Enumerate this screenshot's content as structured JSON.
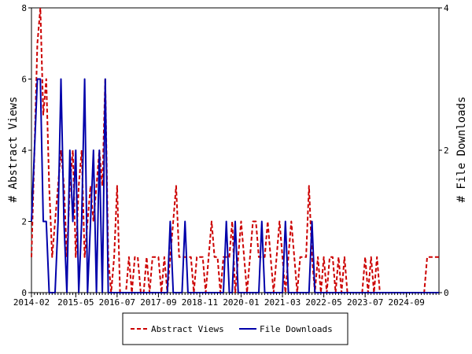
{
  "chart_data": {
    "type": "line",
    "ylabel_left": "# Abstract Views",
    "ylabel_right": "# File Downloads",
    "ylim_left": [
      0,
      8
    ],
    "ylim_right": [
      0,
      4
    ],
    "yticks_left": [
      "0",
      "2",
      "4",
      "6",
      "8"
    ],
    "yticks_right": [
      "0",
      "2",
      "4"
    ],
    "xlim": [
      "2014-02",
      "2025-08"
    ],
    "xtick_labels": [
      "2014-02",
      "2015-05",
      "2016-07",
      "2017-09",
      "2018-11",
      "2020-01",
      "2021-03",
      "2022-05",
      "2023-07",
      "2024-09"
    ],
    "grid": false,
    "legend_position": "bottom",
    "series": [
      {
        "name": "Abstract Views",
        "axis": "left",
        "color": "#cc0000",
        "style": "dashed",
        "x": [
          "2014-02",
          "2014-03",
          "2014-04",
          "2014-05",
          "2014-06",
          "2014-07",
          "2014-08",
          "2014-09",
          "2014-10",
          "2014-11",
          "2014-12",
          "2015-01",
          "2015-02",
          "2015-03",
          "2015-04",
          "2015-05",
          "2015-06",
          "2015-07",
          "2015-08",
          "2015-09",
          "2015-10",
          "2015-11",
          "2015-12",
          "2016-01",
          "2016-02",
          "2016-03",
          "2016-04",
          "2016-05",
          "2016-06",
          "2016-07",
          "2016-08",
          "2016-09",
          "2016-10",
          "2016-11",
          "2016-12",
          "2017-01",
          "2017-02",
          "2017-03",
          "2017-04",
          "2017-05",
          "2017-06",
          "2017-07",
          "2017-08",
          "2017-09",
          "2017-10",
          "2017-11",
          "2017-12",
          "2018-01",
          "2018-02",
          "2018-03",
          "2018-04",
          "2018-05",
          "2018-06",
          "2018-07",
          "2018-08",
          "2018-09",
          "2018-10",
          "2018-11",
          "2018-12",
          "2019-01",
          "2019-02",
          "2019-03",
          "2019-04",
          "2019-05",
          "2019-06",
          "2019-07",
          "2019-08",
          "2019-09",
          "2019-10",
          "2019-11",
          "2019-12",
          "2020-01",
          "2020-02",
          "2020-03",
          "2020-04",
          "2020-05",
          "2020-06",
          "2020-07",
          "2020-08",
          "2020-09",
          "2020-10",
          "2020-11",
          "2020-12",
          "2021-01",
          "2021-02",
          "2021-03",
          "2021-04",
          "2021-05",
          "2021-06",
          "2021-07",
          "2021-08",
          "2021-09",
          "2021-10",
          "2021-11",
          "2021-12",
          "2022-01",
          "2022-02",
          "2022-03",
          "2022-04",
          "2022-05",
          "2022-06",
          "2022-07",
          "2022-08",
          "2022-09",
          "2022-10",
          "2022-11",
          "2022-12",
          "2023-01",
          "2023-02",
          "2023-03",
          "2023-04",
          "2023-05",
          "2023-06",
          "2023-07",
          "2023-08",
          "2023-09",
          "2023-10",
          "2023-11",
          "2023-12",
          "2024-01",
          "2024-02",
          "2024-03",
          "2024-04",
          "2024-05",
          "2024-06",
          "2024-07",
          "2024-08",
          "2024-09",
          "2024-10",
          "2024-11",
          "2024-12",
          "2025-01",
          "2025-02",
          "2025-03",
          "2025-04",
          "2025-05",
          "2025-06",
          "2025-07",
          "2025-08"
        ],
        "values": [
          1,
          4,
          7,
          8,
          5,
          6,
          3,
          1,
          2,
          3,
          4,
          3,
          1,
          3,
          4,
          1,
          3,
          4,
          1,
          2,
          3,
          2,
          3,
          4,
          3,
          6,
          1,
          0,
          1,
          3,
          0,
          0,
          0,
          1,
          0,
          1,
          1,
          0,
          0,
          1,
          0,
          1,
          1,
          1,
          0,
          1,
          0,
          1,
          2,
          3,
          1,
          1,
          1,
          1,
          1,
          0,
          1,
          1,
          1,
          0,
          1,
          2,
          1,
          1,
          0,
          1,
          1,
          1,
          2,
          0,
          1,
          2,
          1,
          0,
          1,
          2,
          2,
          1,
          1,
          1,
          2,
          1,
          0,
          1,
          2,
          1,
          0,
          1,
          2,
          1,
          0,
          1,
          1,
          1,
          3,
          1,
          0,
          1,
          0,
          1,
          0,
          1,
          1,
          0,
          1,
          0,
          1,
          0,
          0,
          0,
          0,
          0,
          0,
          1,
          0,
          1,
          0,
          1,
          0,
          0,
          0,
          0,
          0,
          0,
          0,
          0,
          0,
          0,
          0,
          0,
          0,
          0,
          0,
          0,
          1,
          1,
          1,
          1,
          1
        ]
      },
      {
        "name": "File Downloads",
        "axis": "right",
        "color": "#0000aa",
        "style": "solid",
        "x": [
          "2014-02",
          "2014-03",
          "2014-04",
          "2014-05",
          "2014-06",
          "2014-07",
          "2014-08",
          "2014-09",
          "2014-10",
          "2014-11",
          "2014-12",
          "2015-01",
          "2015-02",
          "2015-03",
          "2015-04",
          "2015-05",
          "2015-06",
          "2015-07",
          "2015-08",
          "2015-09",
          "2015-10",
          "2015-11",
          "2015-12",
          "2016-01",
          "2016-02",
          "2016-03",
          "2016-04",
          "2016-05",
          "2016-06",
          "2016-07",
          "2016-08",
          "2016-09",
          "2016-10",
          "2016-11",
          "2016-12",
          "2017-01",
          "2017-02",
          "2017-03",
          "2017-04",
          "2017-05",
          "2017-06",
          "2017-07",
          "2017-08",
          "2017-09",
          "2017-10",
          "2017-11",
          "2017-12",
          "2018-01",
          "2018-02",
          "2018-03",
          "2018-04",
          "2018-05",
          "2018-06",
          "2018-07",
          "2018-08",
          "2018-09",
          "2018-10",
          "2018-11",
          "2018-12",
          "2019-01",
          "2019-02",
          "2019-03",
          "2019-04",
          "2019-05",
          "2019-06",
          "2019-07",
          "2019-08",
          "2019-09",
          "2019-10",
          "2019-11",
          "2019-12",
          "2020-01",
          "2020-02",
          "2020-03",
          "2020-04",
          "2020-05",
          "2020-06",
          "2020-07",
          "2020-08",
          "2020-09",
          "2020-10",
          "2020-11",
          "2020-12",
          "2021-01",
          "2021-02",
          "2021-03",
          "2021-04",
          "2021-05",
          "2021-06",
          "2021-07",
          "2021-08",
          "2021-09",
          "2021-10",
          "2021-11",
          "2021-12",
          "2022-01",
          "2022-02",
          "2022-03",
          "2022-04",
          "2022-05",
          "2022-06",
          "2022-07",
          "2022-08",
          "2022-09",
          "2022-10",
          "2022-11",
          "2022-12",
          "2023-01",
          "2023-02",
          "2023-03",
          "2023-04",
          "2023-05",
          "2023-06",
          "2023-07",
          "2023-08",
          "2023-09",
          "2023-10",
          "2023-11",
          "2023-12",
          "2024-01",
          "2024-02",
          "2024-03",
          "2024-04",
          "2024-05",
          "2024-06",
          "2024-07",
          "2024-08",
          "2024-09",
          "2024-10",
          "2024-11",
          "2024-12",
          "2025-01",
          "2025-02",
          "2025-03",
          "2025-04",
          "2025-05",
          "2025-06",
          "2025-07",
          "2025-08"
        ],
        "values": [
          1,
          2,
          3,
          3,
          1,
          1,
          0,
          0,
          0,
          1,
          3,
          1,
          0,
          2,
          1,
          2,
          0,
          1,
          3,
          0,
          1,
          2,
          0,
          2,
          0,
          3,
          0,
          0,
          0,
          0,
          0,
          0,
          0,
          0,
          0,
          0,
          0,
          0,
          0,
          0,
          0,
          0,
          0,
          0,
          0,
          0,
          0,
          1,
          0,
          0,
          0,
          0,
          1,
          0,
          0,
          0,
          0,
          0,
          0,
          0,
          0,
          0,
          0,
          0,
          0,
          0,
          1,
          0,
          0,
          1,
          0,
          0,
          0,
          0,
          0,
          0,
          0,
          0,
          1,
          0,
          0,
          0,
          0,
          0,
          0,
          0,
          1,
          0,
          0,
          0,
          0,
          0,
          0,
          0,
          0,
          1,
          0,
          0,
          0,
          0,
          0,
          0,
          0,
          0,
          0,
          0,
          0,
          0,
          0,
          0,
          0,
          0,
          0,
          0,
          0,
          0,
          0,
          0,
          0,
          0,
          0,
          0,
          0,
          0,
          0,
          0,
          0,
          0,
          0,
          0,
          0,
          0,
          0,
          0,
          0,
          0,
          0,
          0,
          0
        ]
      }
    ]
  }
}
